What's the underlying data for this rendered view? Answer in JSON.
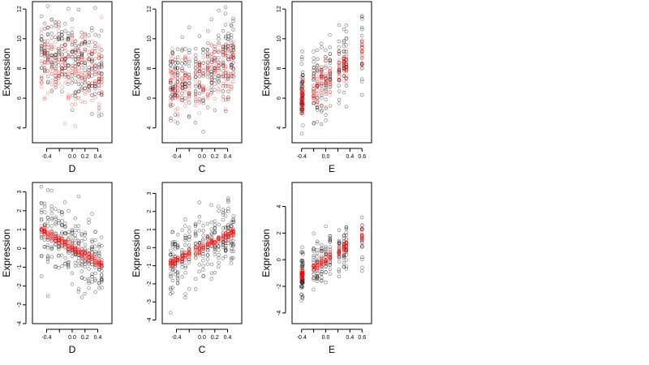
{
  "colors": {
    "black_points": "#000000",
    "red_points": "#ff0000",
    "background": "#ffffff"
  },
  "chart_data": [
    {
      "type": "scatter",
      "row": 1,
      "col": 1,
      "xlabel": "D",
      "ylabel": "Expression",
      "xlim": [
        -0.52,
        0.52
      ],
      "ylim": [
        3.0,
        12.5
      ],
      "xticks": [
        -0.4,
        -0.2,
        0.0,
        0.2,
        0.4
      ],
      "xtick_labels": [
        "-0.4",
        "",
        "0.0",
        "0.2",
        "0.4"
      ],
      "yticks": [
        4,
        6,
        8,
        10,
        12
      ],
      "ytick_labels": [
        "4",
        "6",
        "8",
        "10",
        "12"
      ],
      "x_levels": [
        -0.48,
        -0.43,
        -0.38,
        -0.32,
        -0.26,
        -0.21,
        -0.16,
        -0.11,
        -0.06,
        0.0,
        0.05,
        0.1,
        0.15,
        0.2,
        0.26,
        0.31,
        0.36,
        0.42,
        0.46
      ],
      "series": [
        {
          "color": "black",
          "trend": [
            8.6,
            -2.0
          ],
          "spread": 1.4,
          "n_per_x": 14
        },
        {
          "color": "red",
          "trend": [
            8.2,
            -1.5
          ],
          "spread": 1.2,
          "n_per_x": 12
        }
      ]
    },
    {
      "type": "scatter",
      "row": 1,
      "col": 2,
      "xlabel": "C",
      "ylabel": "Expression",
      "xlim": [
        -0.52,
        0.52
      ],
      "ylim": [
        3.0,
        12.5
      ],
      "xticks": [
        -0.4,
        -0.2,
        0.0,
        0.2,
        0.4
      ],
      "xtick_labels": [
        "-0.4",
        "",
        "0.0",
        "0.2",
        "0.4"
      ],
      "yticks": [
        4,
        6,
        8,
        10,
        12
      ],
      "ytick_labels": [
        "4",
        "6",
        "8",
        "10",
        "12"
      ],
      "x_levels": [
        -0.49,
        -0.46,
        -0.42,
        -0.38,
        -0.31,
        -0.26,
        -0.2,
        -0.1,
        -0.04,
        0.02,
        0.09,
        0.15,
        0.2,
        0.26,
        0.33,
        0.37,
        0.41,
        0.46,
        0.49
      ],
      "series": [
        {
          "color": "black",
          "trend": [
            7.7,
            1.8
          ],
          "spread": 1.4,
          "n_per_x": 14
        },
        {
          "color": "red",
          "trend": [
            7.4,
            1.6
          ],
          "spread": 1.1,
          "n_per_x": 12
        }
      ]
    },
    {
      "type": "scatter",
      "row": 1,
      "col": 3,
      "xlabel": "E",
      "ylabel": "Expression",
      "xlim": [
        -0.45,
        0.65
      ],
      "ylim": [
        3.0,
        12.5
      ],
      "xticks": [
        -0.4,
        -0.2,
        0.0,
        0.2,
        0.4,
        0.6
      ],
      "xtick_labels": [
        "-0.4",
        "",
        "0.0",
        "",
        "0.4",
        "0.6"
      ],
      "yticks": [
        4,
        6,
        8,
        10,
        12
      ],
      "ytick_labels": [
        "4",
        "6",
        "8",
        "10",
        "12"
      ],
      "x_levels": [
        -0.4,
        -0.39,
        -0.38,
        -0.2,
        -0.14,
        -0.07,
        0.0,
        0.07,
        0.22,
        0.3,
        0.34,
        0.6
      ],
      "series": [
        {
          "color": "black",
          "trend": [
            7.4,
            3.3
          ],
          "spread": 1.3,
          "n_per_x": 18
        },
        {
          "color": "red",
          "trend": [
            7.2,
            3.3
          ],
          "spread": 0.6,
          "n_per_x": 16
        }
      ]
    },
    {
      "type": "scatter",
      "row": 2,
      "col": 1,
      "xlabel": "D",
      "ylabel": "Expression",
      "xlim": [
        -0.52,
        0.52
      ],
      "ylim": [
        -4.0,
        3.5
      ],
      "xticks": [
        -0.4,
        -0.2,
        0.0,
        0.2,
        0.4
      ],
      "xtick_labels": [
        "-0.4",
        "",
        "0.0",
        "0.2",
        "0.4"
      ],
      "yticks": [
        -4,
        -3,
        -2,
        -1,
        0,
        1,
        2,
        3
      ],
      "ytick_labels": [
        "-4",
        "-3",
        "-2",
        "-1",
        "0",
        "1",
        "2",
        "3"
      ],
      "x_levels": [
        -0.48,
        -0.43,
        -0.38,
        -0.32,
        -0.26,
        -0.21,
        -0.16,
        -0.11,
        -0.06,
        0.0,
        0.05,
        0.1,
        0.15,
        0.2,
        0.26,
        0.31,
        0.36,
        0.42,
        0.46
      ],
      "series": [
        {
          "color": "black",
          "trend": [
            0.05,
            -2.1
          ],
          "spread": 0.9,
          "n_per_x": 14
        },
        {
          "color": "red",
          "trend": [
            0.05,
            -2.0
          ],
          "spread": 0.12,
          "n_per_x": 12
        }
      ]
    },
    {
      "type": "scatter",
      "row": 2,
      "col": 2,
      "xlabel": "C",
      "ylabel": "Expression",
      "xlim": [
        -0.52,
        0.52
      ],
      "ylim": [
        -4.2,
        3.6
      ],
      "xticks": [
        -0.4,
        -0.2,
        0.0,
        0.2,
        0.4
      ],
      "xtick_labels": [
        "-0.4",
        "",
        "0.0",
        "0.2",
        "0.4"
      ],
      "yticks": [
        -4,
        -3,
        -2,
        -1,
        0,
        1,
        2,
        3
      ],
      "ytick_labels": [
        "-4",
        "-3",
        "-2",
        "-1",
        "0",
        "1",
        "2",
        "3"
      ],
      "x_levels": [
        -0.49,
        -0.46,
        -0.42,
        -0.38,
        -0.31,
        -0.26,
        -0.2,
        -0.1,
        -0.04,
        0.02,
        0.09,
        0.15,
        0.2,
        0.26,
        0.33,
        0.37,
        0.41,
        0.46,
        0.49
      ],
      "series": [
        {
          "color": "black",
          "trend": [
            0.0,
            1.8
          ],
          "spread": 0.9,
          "n_per_x": 14
        },
        {
          "color": "red",
          "trend": [
            0.0,
            1.75
          ],
          "spread": 0.12,
          "n_per_x": 12
        }
      ]
    },
    {
      "type": "scatter",
      "row": 2,
      "col": 3,
      "xlabel": "E",
      "ylabel": "Expression",
      "xlim": [
        -0.45,
        0.65
      ],
      "ylim": [
        -4.8,
        5.8
      ],
      "xticks": [
        -0.4,
        -0.2,
        0.0,
        0.2,
        0.4,
        0.6
      ],
      "xtick_labels": [
        "-0.4",
        "",
        "0.0",
        "",
        "0.4",
        "0.6"
      ],
      "yticks": [
        -4,
        -2,
        0,
        2,
        4
      ],
      "ytick_labels": [
        "-4",
        "-2",
        "0",
        "2",
        "4"
      ],
      "x_levels": [
        -0.4,
        -0.39,
        -0.38,
        -0.2,
        -0.14,
        -0.07,
        0.0,
        0.07,
        0.22,
        0.3,
        0.34,
        0.6
      ],
      "series": [
        {
          "color": "black",
          "trend": [
            0.0,
            3.0
          ],
          "spread": 1.0,
          "n_per_x": 18
        },
        {
          "color": "red",
          "trend": [
            0.0,
            3.0
          ],
          "spread": 0.2,
          "n_per_x": 14
        }
      ]
    }
  ]
}
